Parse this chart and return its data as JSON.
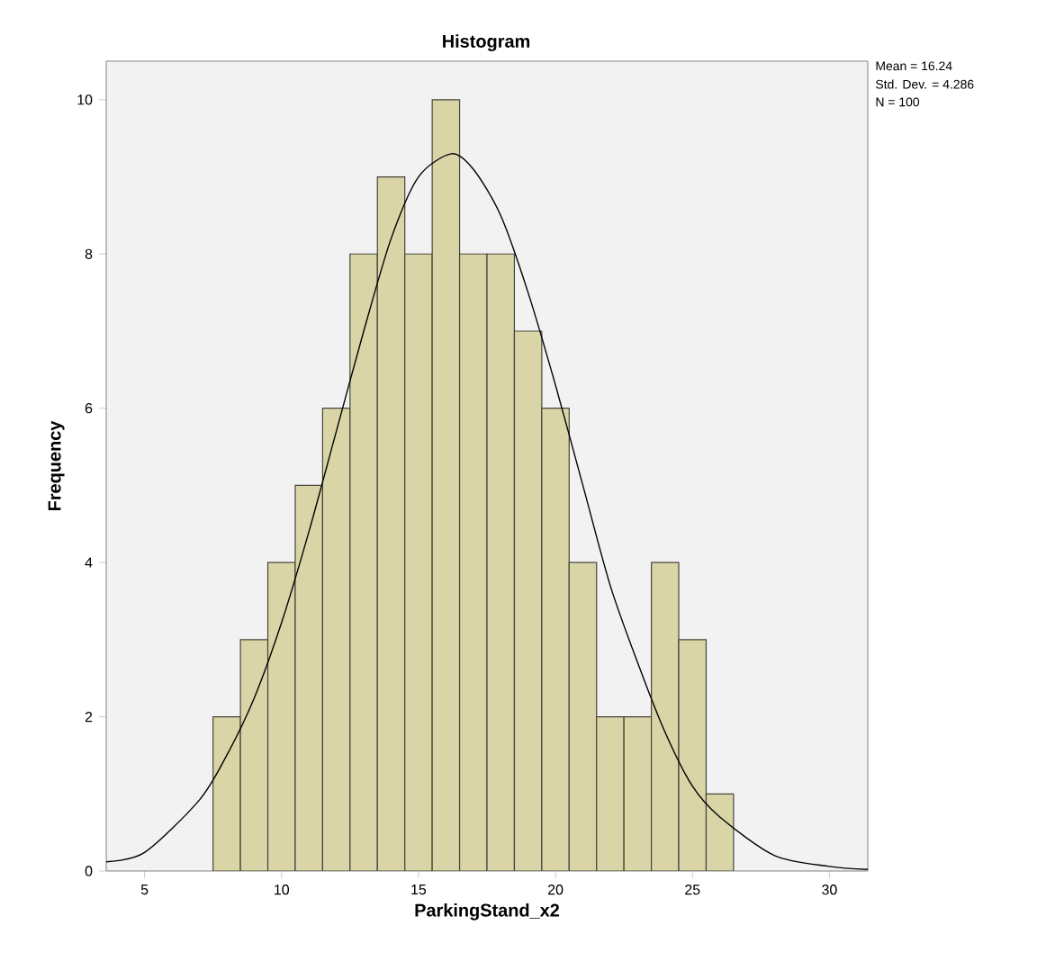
{
  "chart_data": {
    "type": "histogram",
    "title": "Histogram",
    "xlabel": "ParkingStand_x2",
    "ylabel": "Frequency",
    "annotations": [
      "Mean = 16.24",
      "Std. Dev. = 4.286",
      "N = 100"
    ],
    "series": [
      {
        "color": "#dad5a6",
        "bins": [
          7.5,
          8.5,
          9.5,
          10.5,
          11.5,
          12.5,
          13.5,
          14.5,
          15.5,
          16.5,
          17.5,
          18.5,
          19.5,
          20.5,
          21.5,
          22.5,
          23.5,
          24.5,
          25.5,
          26.5
        ],
        "values": [
          2,
          3,
          4,
          5,
          6,
          8,
          9,
          8,
          10,
          8,
          8,
          7,
          6,
          4,
          2,
          2,
          4,
          3,
          1
        ]
      },
      {
        "type": "line",
        "color": "#000000",
        "x": [
          3.6,
          5,
          7,
          8,
          9,
          10,
          11,
          12,
          13,
          14,
          15,
          16.2,
          17,
          18,
          19,
          20,
          21,
          22,
          23,
          24,
          25,
          26,
          28,
          30,
          31.4
        ],
        "values": [
          0.12,
          0.24,
          0.92,
          1.5,
          2.24,
          3.22,
          4.4,
          5.7,
          7.0,
          8.2,
          9.0,
          9.3,
          9.1,
          8.5,
          7.5,
          6.3,
          5.0,
          3.7,
          2.7,
          1.8,
          1.1,
          0.7,
          0.2,
          0.06,
          0.02
        ]
      }
    ],
    "xlim": [
      3.6,
      31.4
    ],
    "ylim": [
      0,
      10.5
    ],
    "xticks": [
      5,
      10,
      15,
      20,
      25,
      30
    ],
    "yticks": [
      0,
      2,
      4,
      6,
      8,
      10
    ],
    "grid": false
  }
}
